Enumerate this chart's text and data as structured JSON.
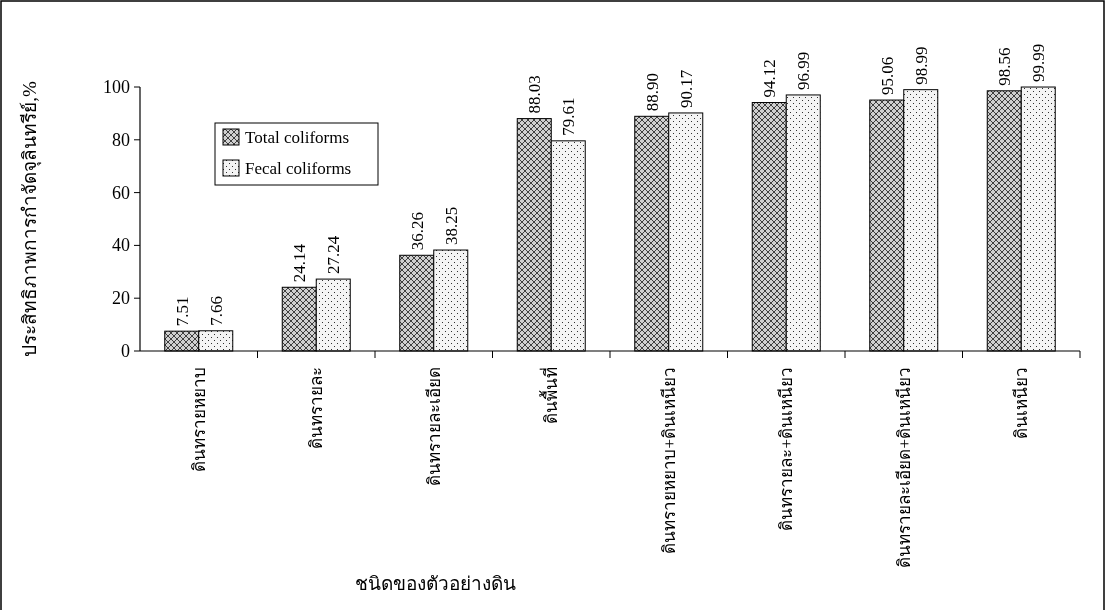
{
  "chart_data": {
    "type": "bar",
    "xlabel": "ชนิดของตัวอย่างดิน",
    "ylabel": "ประสิทธิภาพการกำจัดจุลินทรีย์,%",
    "categories": [
      "ดินทรายหยาบ",
      "ดินทรายละ",
      "ดินทรายละเอียด",
      "ดินพื้นที่",
      "ดินทรายหยาบ+ดินเหนียว",
      "ดินทรายละ+ดินเหนียว",
      "ดินทรายละเอียด+ดินเหนียว",
      "ดินเหนียว"
    ],
    "series": [
      {
        "name": "Total coliforms",
        "color": "#d0d0d0",
        "values": [
          7.51,
          24.14,
          36.26,
          88.03,
          88.9,
          94.12,
          95.06,
          98.56
        ],
        "value_labels": [
          "7.51",
          "24.14",
          "36.26",
          "88.03",
          "88.90",
          "94.12",
          "95.06",
          "98.56"
        ]
      },
      {
        "name": "Fecal coliforms",
        "color": "#f4f4f4",
        "values": [
          7.66,
          27.24,
          38.25,
          79.61,
          90.17,
          96.99,
          98.99,
          99.99
        ],
        "value_labels": [
          "7.66",
          "27.24",
          "38.25",
          "79.61",
          "90.17",
          "96.99",
          "98.99",
          "99.99"
        ]
      }
    ],
    "ylim": [
      0,
      100
    ],
    "yticks": [
      0,
      20,
      40,
      60,
      80,
      100
    ],
    "grid": false,
    "legend": "top left"
  }
}
